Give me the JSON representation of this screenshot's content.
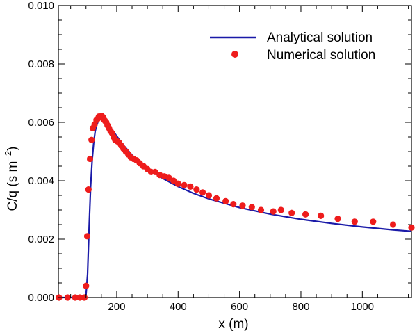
{
  "chart_data": {
    "type": "line",
    "xlabel": "x (m)",
    "ylabel": "C/q (s m",
    "ylabel_exponent": "−2",
    "ylabel_close": ")",
    "xlim": [
      10,
      1160
    ],
    "ylim": [
      0,
      0.01
    ],
    "xticks": [
      200,
      400,
      600,
      800,
      1000
    ],
    "xtick_labels": [
      "200",
      "400",
      "600",
      "800",
      "1000"
    ],
    "yticks": [
      0,
      0.002,
      0.004,
      0.006,
      0.008,
      0.01
    ],
    "ytick_labels": [
      "0.000",
      "0.002",
      "0.004",
      "0.006",
      "0.008",
      "0.010"
    ],
    "grid": false,
    "legend_position": "top-right",
    "colors": {
      "analytical": "#1a1aa8",
      "numerical": "#ee1c1c"
    },
    "series": [
      {
        "name": "Analytical solution",
        "kind": "line",
        "x": [
          10,
          60,
          90,
          100,
          105,
          110,
          115,
          120,
          125,
          130,
          135,
          140,
          145,
          150,
          155,
          160,
          170,
          180,
          190,
          200,
          225,
          250,
          275,
          300,
          350,
          400,
          450,
          500,
          600,
          700,
          800,
          900,
          1000,
          1100,
          1160
        ],
        "y": [
          0,
          0,
          0,
          0.0001,
          0.0008,
          0.0024,
          0.0038,
          0.0047,
          0.0053,
          0.0057,
          0.0059,
          0.00605,
          0.00612,
          0.00614,
          0.00613,
          0.0061,
          0.00598,
          0.00583,
          0.00568,
          0.00553,
          0.00518,
          0.00488,
          0.00463,
          0.00443,
          0.00408,
          0.0038,
          0.00357,
          0.00338,
          0.00308,
          0.00286,
          0.00268,
          0.00254,
          0.00242,
          0.00232,
          0.00227
        ]
      },
      {
        "name": "Numerical solution",
        "kind": "scatter",
        "x": [
          12,
          40,
          65,
          80,
          95,
          100,
          104,
          108,
          113,
          118,
          122,
          128,
          134,
          138,
          142,
          147,
          151,
          155,
          158,
          162,
          166,
          170,
          175,
          180,
          185,
          190,
          195,
          202,
          208,
          215,
          222,
          230,
          238,
          246,
          255,
          265,
          275,
          287,
          300,
          312,
          325,
          340,
          355,
          370,
          385,
          400,
          420,
          440,
          460,
          480,
          500,
          525,
          555,
          580,
          610,
          640,
          670,
          710,
          735,
          770,
          815,
          865,
          920,
          975,
          1035,
          1100,
          1160
        ],
        "y": [
          0,
          0,
          0,
          0,
          0,
          0.0004,
          0.0021,
          0.0037,
          0.00475,
          0.0054,
          0.0058,
          0.00593,
          0.00608,
          0.00612,
          0.0062,
          0.0062,
          0.00622,
          0.00618,
          0.0061,
          0.00605,
          0.006,
          0.0059,
          0.0058,
          0.0057,
          0.00563,
          0.0055,
          0.0054,
          0.00535,
          0.0053,
          0.0052,
          0.0051,
          0.005,
          0.0049,
          0.0048,
          0.00475,
          0.0047,
          0.0046,
          0.0045,
          0.0044,
          0.0043,
          0.0043,
          0.0042,
          0.00415,
          0.0041,
          0.004,
          0.0039,
          0.00385,
          0.0038,
          0.0037,
          0.0036,
          0.0035,
          0.0034,
          0.0033,
          0.0032,
          0.00315,
          0.0031,
          0.003,
          0.00295,
          0.003,
          0.0029,
          0.00285,
          0.0028,
          0.0027,
          0.0026,
          0.0026,
          0.0025,
          0.0024
        ]
      }
    ]
  }
}
